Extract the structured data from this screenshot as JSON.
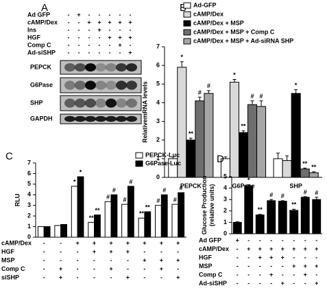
{
  "blot": {
    "panel": "A",
    "conditions": [
      {
        "name": "Ad GFP",
        "signs": [
          "-",
          "+",
          "-",
          "-",
          "-",
          "-",
          "-"
        ]
      },
      {
        "name": "cAMP/Dex",
        "signs": [
          "-",
          "-",
          "+",
          "+",
          "+",
          "+",
          "+"
        ]
      },
      {
        "name": "Ins",
        "signs": [
          "-",
          "-",
          "-",
          "+",
          "-",
          "-",
          "-"
        ]
      },
      {
        "name": "HGF",
        "signs": [
          "-",
          "-",
          "-",
          "-",
          "+",
          "+",
          "+"
        ]
      },
      {
        "name": "Comp C",
        "signs": [
          "-",
          "-",
          "-",
          "-",
          "-",
          "+",
          "-"
        ]
      },
      {
        "name": "Ad-siSHP",
        "signs": [
          "-",
          "-",
          "-",
          "-",
          "-",
          "-",
          "+"
        ]
      }
    ],
    "bands": [
      "PEPCK",
      "G6Pase",
      "SHP",
      "GAPDH"
    ]
  },
  "chart_data": [
    {
      "type": "bar",
      "panel": "B",
      "ylabel": "RelativemRNA levels",
      "categories": [
        "PEPCK",
        "G6Pase",
        "SHP"
      ],
      "ylim": [
        0,
        7
      ],
      "yticks": [
        0,
        1,
        2,
        3,
        4,
        5,
        6,
        7
      ],
      "series": [
        {
          "name": "Ad-GFP",
          "color": "#ffffff",
          "values": [
            1.0,
            1.0,
            1.0
          ],
          "errors": [
            0.1,
            0.1,
            0.3
          ],
          "annotations": [
            null,
            null,
            null
          ]
        },
        {
          "name": "cAMP/Dex",
          "color": "#d9d9d9",
          "values": [
            5.9,
            5.1,
            0.9
          ],
          "errors": [
            0.3,
            0.15,
            0.25
          ],
          "annotations": [
            "*",
            "*",
            null
          ]
        },
        {
          "name": "cAMP/Dex + MSP",
          "color": "#000000",
          "values": [
            2.0,
            2.4,
            4.5
          ],
          "errors": [
            0.1,
            0.1,
            0.2
          ],
          "annotations": [
            "**",
            "**",
            "*"
          ]
        },
        {
          "name": "cAMP/Dex + MSP + Comp C",
          "color": "#6e6e6e",
          "values": [
            4.1,
            3.9,
            0.45
          ],
          "errors": [
            0.2,
            0.2,
            0.05
          ],
          "annotations": [
            "#",
            "#",
            "**"
          ]
        },
        {
          "name": "cAMP/Dex + MSP + Ad-siRNA SHP",
          "color": "#a6a6a6",
          "values": [
            4.5,
            3.8,
            0.25
          ],
          "errors": [
            0.15,
            0.3,
            0.05
          ],
          "annotations": [
            "#",
            "#",
            "**"
          ]
        }
      ]
    },
    {
      "type": "bar",
      "panel": "C",
      "ylabel": "RLU",
      "ylim": [
        0,
        7
      ],
      "yticks": [
        0,
        1,
        2,
        3,
        4,
        5,
        6,
        7
      ],
      "series": [
        {
          "name": "PEPCK-Luc",
          "color": "#ffffff",
          "values": [
            1.0,
            1.1,
            4.8,
            1.4,
            3.35,
            3.1,
            1.8,
            3.0,
            3.1
          ],
          "annotations": [
            null,
            null,
            "*",
            "**",
            "#",
            "#",
            "**",
            "#",
            "#"
          ]
        },
        {
          "name": "G6Pase-Luc",
          "color": "#000000",
          "values": [
            1.0,
            1.2,
            5.7,
            2.1,
            4.0,
            4.8,
            2.4,
            4.0,
            4.2
          ],
          "annotations": [
            null,
            null,
            "*",
            "**",
            "#",
            "#",
            "**",
            "#",
            "#"
          ]
        }
      ],
      "conditions": [
        {
          "name": "cAMP/Dex",
          "signs": [
            "-",
            "-",
            "+",
            "+",
            "+",
            "+",
            "+",
            "+",
            "+"
          ]
        },
        {
          "name": "HGF",
          "signs": [
            "-",
            "-",
            "-",
            "+",
            "+",
            "+",
            "-",
            "-",
            "-"
          ]
        },
        {
          "name": "MSP",
          "signs": [
            "-",
            "-",
            "-",
            "-",
            "-",
            "-",
            "+",
            "+",
            "+"
          ]
        },
        {
          "name": "Comp C",
          "signs": [
            "-",
            "+",
            "-",
            "-",
            "+",
            "-",
            "-",
            "+",
            "-"
          ]
        },
        {
          "name": "siSHP",
          "signs": [
            "-",
            "+",
            "-",
            "-",
            "-",
            "+",
            "-",
            "-",
            "+"
          ]
        }
      ]
    },
    {
      "type": "bar",
      "panel": "D",
      "ylabel": [
        "Glucose Production",
        "(relative units)"
      ],
      "ylim": [
        0,
        5
      ],
      "yticks": [
        0,
        1,
        2,
        3,
        4,
        5
      ],
      "series": [
        {
          "color": "#000000",
          "values": [
            1.0,
            4.2,
            1.65,
            2.9,
            2.85,
            2.05,
            3.2,
            3.0
          ],
          "errors": [
            0.05,
            0.1,
            0.05,
            0.1,
            0.05,
            0.1,
            0.05,
            0.2
          ],
          "annotations": [
            null,
            "*",
            "**",
            "#",
            "#",
            "**",
            "#",
            "#"
          ]
        }
      ],
      "conditions": [
        {
          "name": "Ad GFP",
          "signs": [
            "+",
            "-",
            "-",
            "-",
            "-",
            "-",
            "-",
            "-"
          ]
        },
        {
          "name": "cAMP/Dex",
          "signs": [
            "-",
            "+",
            "+",
            "+",
            "+",
            "+",
            "+",
            "+"
          ]
        },
        {
          "name": "HGF",
          "signs": [
            "-",
            "-",
            "+",
            "+",
            "+",
            "-",
            "-",
            "-"
          ]
        },
        {
          "name": "MSP",
          "signs": [
            "-",
            "-",
            "-",
            "-",
            "-",
            "+",
            "+",
            "+"
          ]
        },
        {
          "name": "Comp C",
          "signs": [
            "-",
            "-",
            "-",
            "+",
            "-",
            "-",
            "+",
            "-"
          ]
        },
        {
          "name": "Ad-siSHP",
          "signs": [
            "-",
            "-",
            "-",
            "-",
            "+",
            "-",
            "-",
            "+"
          ]
        }
      ]
    }
  ]
}
